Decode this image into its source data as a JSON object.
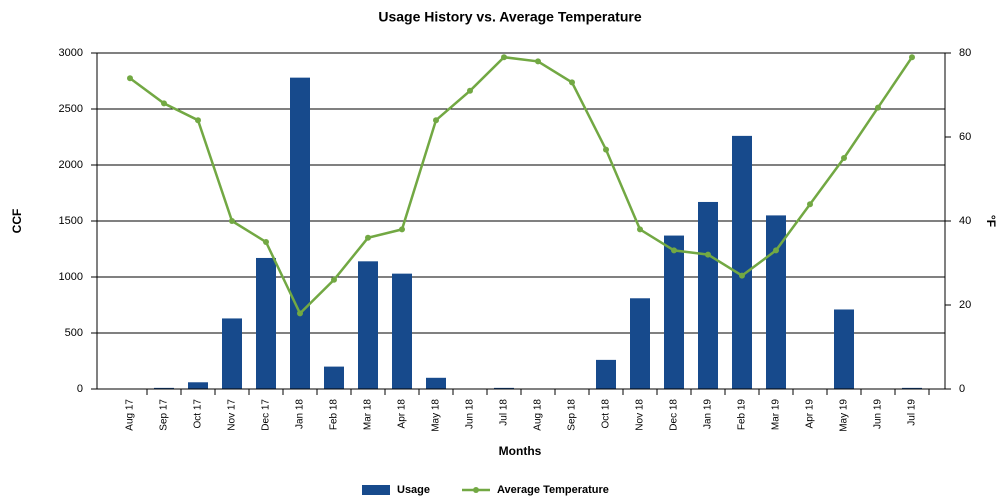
{
  "chart_data": {
    "type": "bar_line",
    "title": "Usage History  vs. Average Temperature",
    "x_label": "Months",
    "y_label": "CCF",
    "y2_label": "°F",
    "categories": [
      "Aug 17",
      "Sep 17",
      "Oct 17",
      "Nov 17",
      "Dec 17",
      "Jan 18",
      "Feb 18",
      "Mar 18",
      "Apr 18",
      "May 18",
      "Jun 18",
      "Jul 18",
      "Aug 18",
      "Sep 18",
      "Oct 18",
      "Nov 18",
      "Dec 18",
      "Jan 19",
      "Feb 19",
      "Mar 19",
      "Apr 19",
      "May 19",
      "Jun 19",
      "Jul 19"
    ],
    "series": [
      {
        "name": "Usage",
        "color": "#174a8c",
        "values": [
          0,
          10,
          60,
          630,
          1170,
          2780,
          200,
          1140,
          1030,
          100,
          0,
          10,
          0,
          0,
          260,
          810,
          1370,
          1670,
          2260,
          1550,
          0,
          710,
          0,
          10
        ]
      },
      {
        "name": "Average Temperature",
        "color": "#72a843",
        "axis": "y2",
        "values": [
          74,
          68,
          64,
          40,
          35,
          18,
          26,
          36,
          38,
          64,
          71,
          79,
          78,
          73,
          57,
          38,
          33,
          32,
          27,
          33,
          44,
          55,
          67,
          79
        ]
      }
    ],
    "ylim": [
      0,
      3000
    ],
    "yticks": [
      0,
      500,
      1000,
      1500,
      2000,
      2500,
      3000
    ],
    "y2lim": [
      0,
      80
    ],
    "y2ticks": [
      0,
      20,
      40,
      60,
      80
    ],
    "grid": true,
    "legend": "bottom"
  }
}
